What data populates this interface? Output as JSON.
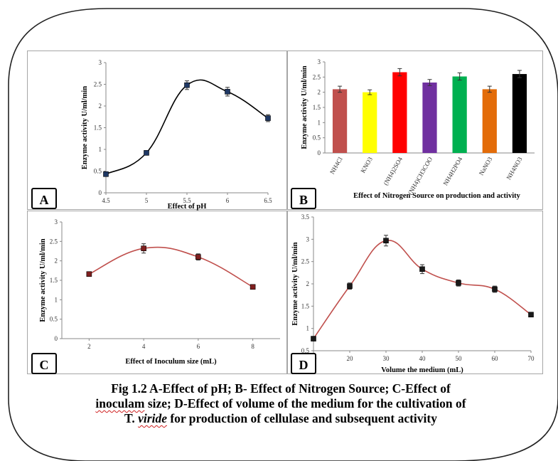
{
  "caption": {
    "line1": "Fig 1.2 A-Effect of pH; B- Effect of Nitrogen Source; C-Effect of",
    "line2_word": "inoculam",
    "line2_rest": " size; D-Effect of volume of the medium for the cultivation of",
    "line3_pre": "T. ",
    "line3_word": "viride",
    "line3_rest": " for production of cellulase and subsequent activity"
  },
  "chart_data": [
    {
      "panel": "A",
      "type": "line",
      "xlabel": "Effect of pH",
      "ylabel": "Enzyme activity U/ml/min",
      "xlim": [
        4.5,
        6.5
      ],
      "ylim": [
        0,
        3
      ],
      "xticks": [
        "4.5",
        "5",
        "5.5",
        "6",
        "6.5"
      ],
      "yticks": [
        "0",
        "0.5",
        "1",
        "1.5",
        "2",
        "2.5",
        "3"
      ],
      "x": [
        4.5,
        5,
        5.5,
        6,
        6.5
      ],
      "values": [
        0.43,
        0.92,
        2.48,
        2.33,
        1.72
      ],
      "errors": [
        0.03,
        0.04,
        0.1,
        0.1,
        0.08
      ],
      "line_color": "#000000",
      "marker_color": "#1f3864",
      "grid": false
    },
    {
      "panel": "B",
      "type": "bar",
      "xlabel": "Effect of Nitrogen Source on production and activity",
      "ylabel": "Enzyme activity U/ml/min",
      "ylim": [
        0,
        3
      ],
      "yticks": [
        "0",
        "0.5",
        "1",
        "1.5",
        "2",
        "2.5",
        "3"
      ],
      "categories": [
        "NH4Cl",
        "KNO3",
        "(NH4)2SO4",
        "(NH4)CH3COO",
        "NH4H2PO4",
        "NaNO3",
        "NH4NO3"
      ],
      "values": [
        2.1,
        2.0,
        2.66,
        2.32,
        2.52,
        2.1,
        2.6
      ],
      "errors": [
        0.1,
        0.08,
        0.12,
        0.1,
        0.12,
        0.1,
        0.12
      ],
      "colors": [
        "#c0504d",
        "#ffff00",
        "#ff0000",
        "#7030a0",
        "#00b050",
        "#e36c09",
        "#000000"
      ],
      "grid": false
    },
    {
      "panel": "C",
      "type": "line",
      "xlabel": "Effect of Inoculum size (mL)",
      "ylabel": "Enzyme activity U/ml/min",
      "xlim": [
        1,
        9
      ],
      "ylim": [
        0,
        3
      ],
      "xticks": [
        "2",
        "4",
        "6",
        "8"
      ],
      "yticks": [
        "0",
        "0.5",
        "1",
        "1.5",
        "2",
        "2.5",
        "3"
      ],
      "x": [
        2,
        4,
        6,
        8
      ],
      "values": [
        1.66,
        2.32,
        2.1,
        1.33
      ],
      "errors": [
        0.06,
        0.12,
        0.08,
        0.05
      ],
      "line_color": "#c0504d",
      "marker_color": "#7f1f1f",
      "grid": false
    },
    {
      "panel": "D",
      "type": "line",
      "xlabel": "Volume the medium (mL)",
      "ylabel": "Enzyme activity U/ml/min",
      "xlim": [
        10,
        70
      ],
      "ylim": [
        0.5,
        3.5
      ],
      "xticks": [
        "10",
        "20",
        "30",
        "40",
        "50",
        "60",
        "70"
      ],
      "yticks": [
        "0.5",
        "1",
        "1.5",
        "2",
        "2.5",
        "3",
        "3.5"
      ],
      "x": [
        10,
        20,
        30,
        40,
        50,
        60,
        70
      ],
      "values": [
        0.77,
        1.95,
        2.97,
        2.33,
        2.02,
        1.88,
        1.31
      ],
      "errors": [
        0.03,
        0.07,
        0.12,
        0.1,
        0.07,
        0.07,
        0.04
      ],
      "line_color": "#c0504d",
      "marker_color": "#1a1a1a",
      "grid": false
    }
  ]
}
